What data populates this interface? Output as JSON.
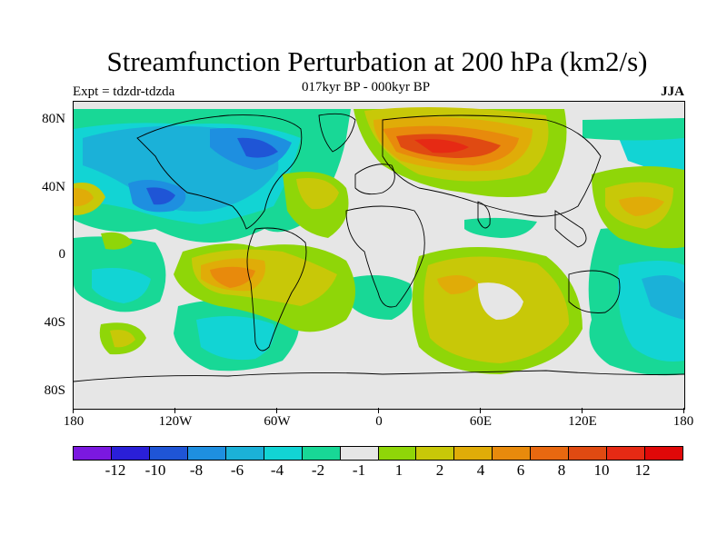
{
  "title": "Streamfunction Perturbation at 200 hPa (km2/s)",
  "subtitle": "017kyr BP - 000kyr BP",
  "experiment": "Expt = tdzdr-tdzda",
  "season": "JJA",
  "lat_labels": [
    "80N",
    "40N",
    "0",
    "40S",
    "80S"
  ],
  "lon_labels": [
    "180",
    "120W",
    "60W",
    "0",
    "60E",
    "120E",
    "180"
  ],
  "colorbar": {
    "labels": [
      "-12",
      "-10",
      "-8",
      "-6",
      "-4",
      "-2",
      "-1",
      "1",
      "2",
      "4",
      "6",
      "8",
      "10",
      "12"
    ],
    "colors": [
      "#7b18e0",
      "#2a1fd8",
      "#1f55d6",
      "#1e8fe0",
      "#1bb1d8",
      "#12d4d4",
      "#18d896",
      "#e6e6e6",
      "#8fd608",
      "#c8c808",
      "#e0ac08",
      "#e88a0c",
      "#e86810",
      "#e04a12",
      "#e62a14",
      "#e00808"
    ]
  },
  "icons": {
    "coastline": "world-coastline-outline"
  }
}
